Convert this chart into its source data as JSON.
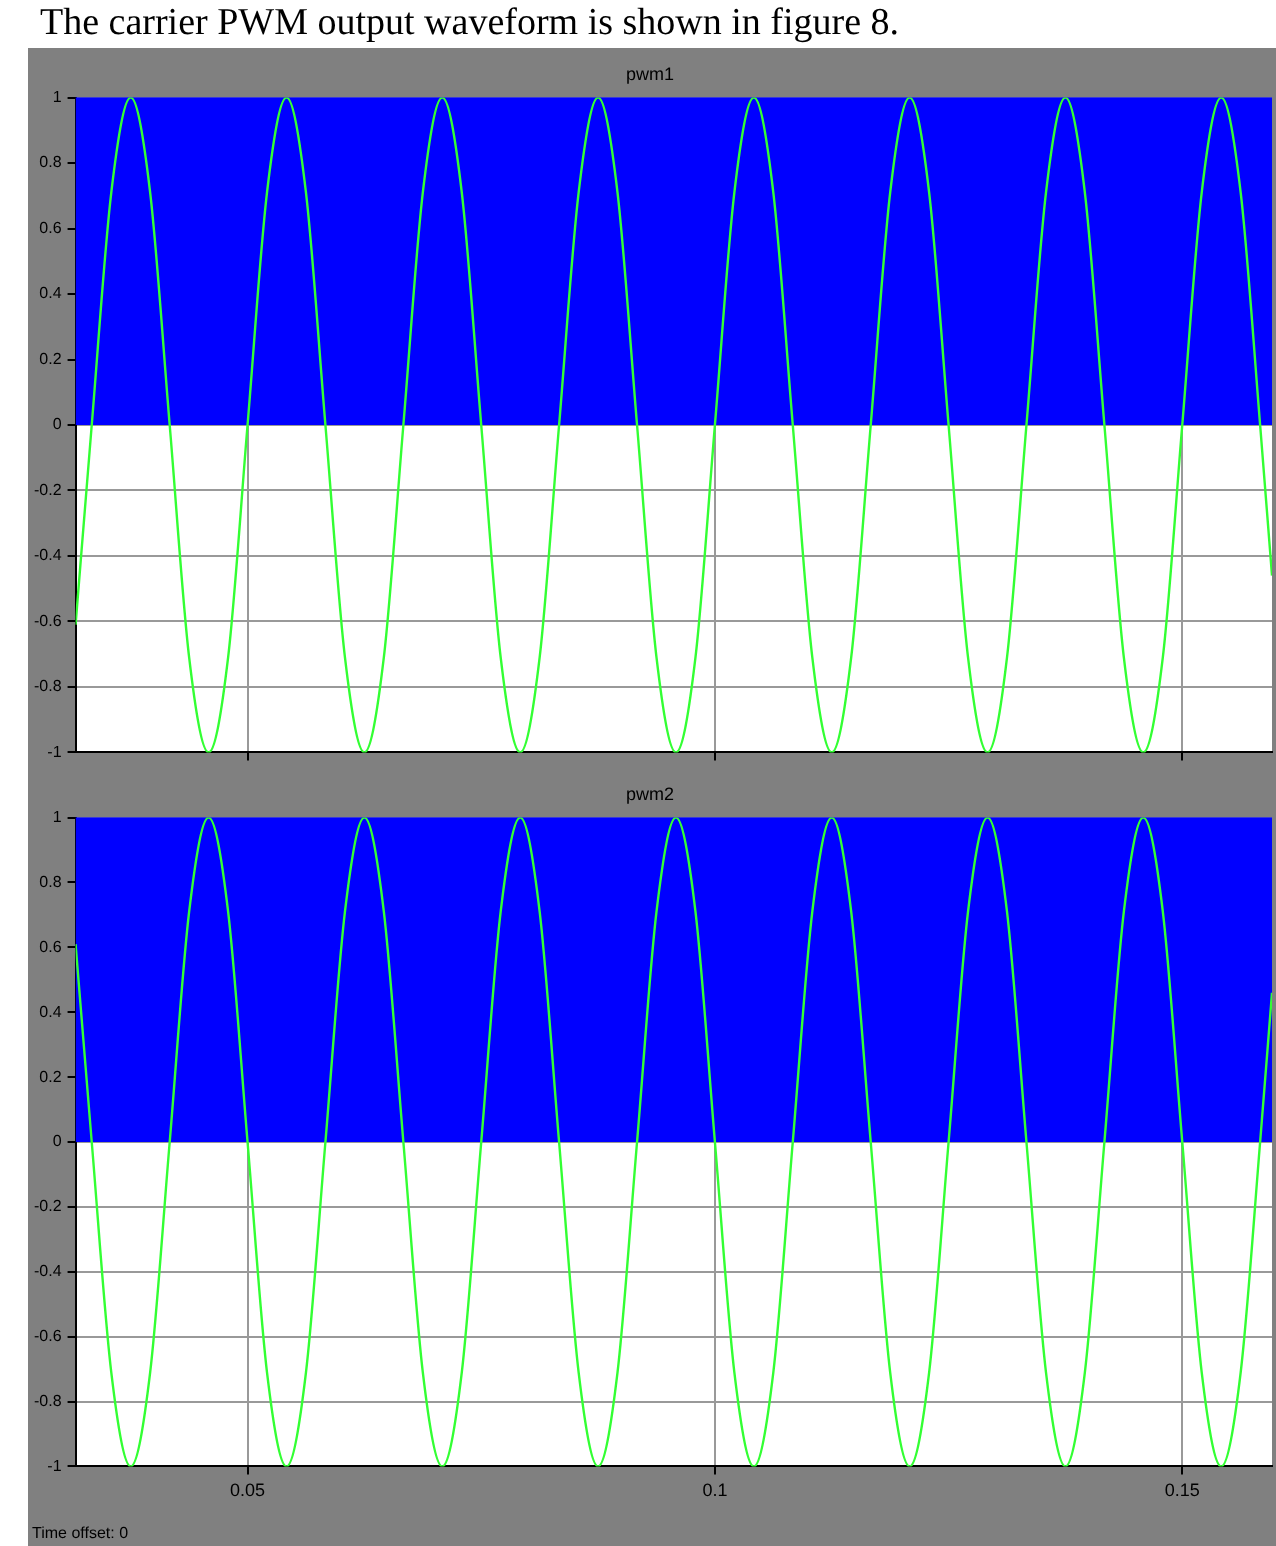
{
  "chart_data": [
    {
      "type": "line",
      "title": "pwm1",
      "annotations": [
        "The carrier PWM output waveform is shown in figure 8."
      ],
      "xlim": [
        0.0316,
        0.1596
      ],
      "ylim": [
        -1,
        1
      ],
      "yticks": [
        -1,
        -0.8,
        -0.6,
        -0.4,
        -0.2,
        0,
        0.2,
        0.4,
        0.6,
        0.8,
        1
      ],
      "xticks": [
        0.05,
        0.1,
        0.15
      ],
      "grid": true,
      "tick_labels": "y",
      "x": [
        0.0316,
        0.03333,
        0.03542,
        0.0375,
        0.03958,
        0.04167,
        0.04375,
        0.04583,
        0.04792,
        0.05,
        0.05208,
        0.05417,
        0.05625,
        0.05833,
        0.06042,
        0.0625,
        0.06458,
        0.06667,
        0.06875,
        0.07083,
        0.07292,
        0.075,
        0.07708,
        0.07917,
        0.08125,
        0.08333,
        0.08542,
        0.0875,
        0.08958,
        0.09167,
        0.09375,
        0.09583,
        0.09792,
        0.1,
        0.10208,
        0.10417,
        0.10625,
        0.10833,
        0.11042,
        0.1125,
        0.11458,
        0.11667,
        0.11875,
        0.12083,
        0.12292,
        0.125,
        0.12708,
        0.12917,
        0.13125,
        0.13333,
        0.13542,
        0.1375,
        0.13958,
        0.14167,
        0.14375,
        0.14583,
        0.14792,
        0.15,
        0.15208,
        0.15417,
        0.15625,
        0.15833,
        0.1596
      ],
      "series": [
        {
          "type": "area",
          "color": "#0000ff",
          "values": [
            1,
            1,
            1,
            1,
            1,
            1,
            1,
            1,
            1,
            1,
            1,
            1,
            1,
            1,
            1,
            1,
            1,
            1,
            1,
            1,
            1,
            1,
            1,
            1,
            1,
            1,
            1,
            1,
            1,
            1,
            1,
            1,
            1,
            1,
            1,
            1,
            1,
            1,
            1,
            1,
            1,
            1,
            1,
            1,
            1,
            1,
            1,
            1,
            1,
            1,
            1,
            1,
            1,
            1,
            1,
            1,
            1,
            1,
            1,
            1,
            1,
            1,
            1
          ]
        },
        {
          "type": "line",
          "color": "#33ff33",
          "values": [
            -0.61,
            0,
            0.71,
            1,
            0.71,
            0,
            -0.71,
            -1,
            -0.71,
            0,
            0.71,
            1,
            0.71,
            0,
            -0.71,
            -1,
            -0.71,
            0,
            0.71,
            1,
            0.71,
            0,
            -0.71,
            -1,
            -0.71,
            0,
            0.71,
            1,
            0.71,
            0,
            -0.71,
            -1,
            -0.71,
            0,
            0.71,
            1,
            0.71,
            0,
            -0.71,
            -1,
            -0.71,
            0,
            0.71,
            1,
            0.71,
            0,
            -0.71,
            -1,
            -0.71,
            0,
            0.71,
            1,
            0.71,
            0,
            -0.71,
            -1,
            -0.71,
            0,
            0.71,
            1,
            0.71,
            0,
            -0.46
          ]
        }
      ]
    },
    {
      "type": "line",
      "title": "pwm2",
      "annotations": [
        "Time offset:  0"
      ],
      "xlim": [
        0.0316,
        0.1596
      ],
      "ylim": [
        -1,
        1
      ],
      "yticks": [
        -1,
        -0.8,
        -0.6,
        -0.4,
        -0.2,
        0,
        0.2,
        0.4,
        0.6,
        0.8,
        1
      ],
      "xticks": [
        0.05,
        0.1,
        0.15
      ],
      "grid": true,
      "x": [
        0.0316,
        0.03333,
        0.03542,
        0.0375,
        0.03958,
        0.04167,
        0.04375,
        0.04583,
        0.04792,
        0.05,
        0.05208,
        0.05417,
        0.05625,
        0.05833,
        0.06042,
        0.0625,
        0.06458,
        0.06667,
        0.06875,
        0.07083,
        0.07292,
        0.075,
        0.07708,
        0.07917,
        0.08125,
        0.08333,
        0.08542,
        0.0875,
        0.08958,
        0.09167,
        0.09375,
        0.09583,
        0.09792,
        0.1,
        0.10208,
        0.10417,
        0.10625,
        0.10833,
        0.11042,
        0.1125,
        0.11458,
        0.11667,
        0.11875,
        0.12083,
        0.12292,
        0.125,
        0.12708,
        0.12917,
        0.13125,
        0.13333,
        0.13542,
        0.1375,
        0.13958,
        0.14167,
        0.14375,
        0.14583,
        0.14792,
        0.15,
        0.15208,
        0.15417,
        0.15625,
        0.15833,
        0.1596
      ],
      "series": [
        {
          "type": "area",
          "color": "#0000ff",
          "values": [
            1,
            1,
            1,
            1,
            1,
            1,
            1,
            1,
            1,
            1,
            1,
            1,
            1,
            1,
            1,
            1,
            1,
            1,
            1,
            1,
            1,
            1,
            1,
            1,
            1,
            1,
            1,
            1,
            1,
            1,
            1,
            1,
            1,
            1,
            1,
            1,
            1,
            1,
            1,
            1,
            1,
            1,
            1,
            1,
            1,
            1,
            1,
            1,
            1,
            1,
            1,
            1,
            1,
            1,
            1,
            1,
            1,
            1,
            1,
            1,
            1,
            1,
            1
          ]
        },
        {
          "type": "line",
          "color": "#33ff33",
          "values": [
            0.61,
            0,
            -0.71,
            -1,
            -0.71,
            0,
            0.71,
            1,
            0.71,
            0,
            -0.71,
            -1,
            -0.71,
            0,
            0.71,
            1,
            0.71,
            0,
            -0.71,
            -1,
            -0.71,
            0,
            0.71,
            1,
            0.71,
            0,
            -0.71,
            -1,
            -0.71,
            0,
            0.71,
            1,
            0.71,
            0,
            -0.71,
            -1,
            -0.71,
            0,
            0.71,
            1,
            0.71,
            0,
            -0.71,
            -1,
            -0.71,
            0,
            0.71,
            1,
            0.71,
            0,
            -0.71,
            -1,
            -0.71,
            0,
            0.71,
            1,
            0.71,
            0,
            -0.71,
            -1,
            -0.71,
            0,
            0.46
          ]
        }
      ]
    }
  ]
}
